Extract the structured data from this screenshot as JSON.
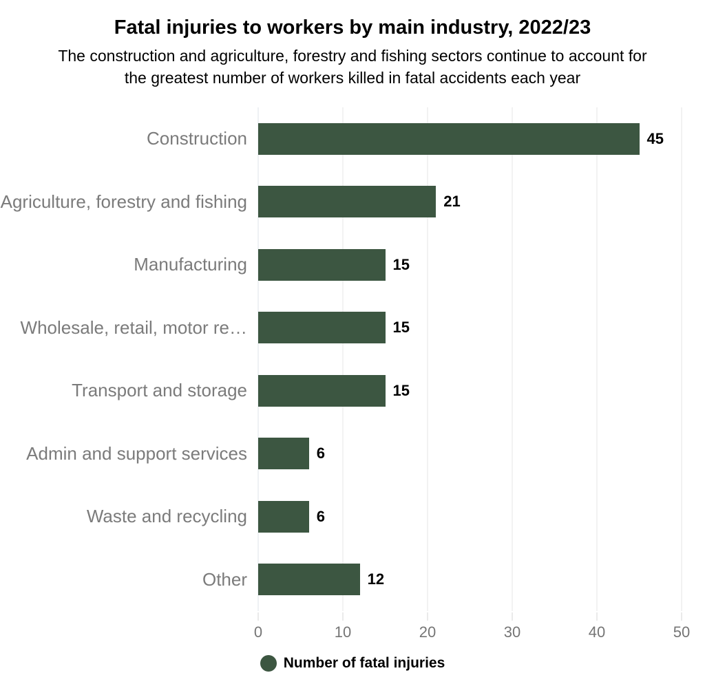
{
  "chart_data": {
    "type": "bar",
    "orientation": "horizontal",
    "title": "Fatal injuries to workers by main industry, 2022/23",
    "subtitle": "The construction and agriculture, forestry and fishing sectors continue to account for the greatest number of workers killed in fatal accidents each year",
    "categories": [
      "Construction",
      "Agriculture, forestry and fishing",
      "Manufacturing",
      "Wholesale, retail, motor re…",
      "Transport and storage",
      "Admin and support services",
      "Waste and recycling",
      "Other"
    ],
    "values": [
      45,
      21,
      15,
      15,
      15,
      6,
      6,
      12
    ],
    "xlim": [
      0,
      50
    ],
    "x_ticks": [
      0,
      10,
      20,
      30,
      40,
      50
    ],
    "grid": true,
    "legend": {
      "label": "Number of fatal injuries",
      "position": "bottom-center",
      "marker": "circle"
    },
    "colors": {
      "bar": "#3c5641",
      "category_label": "#7b7b7b",
      "tick_label": "#757575",
      "gridline": "#e6e6e6",
      "axis_line": "#dde3ea",
      "value_label": "#000000"
    }
  }
}
